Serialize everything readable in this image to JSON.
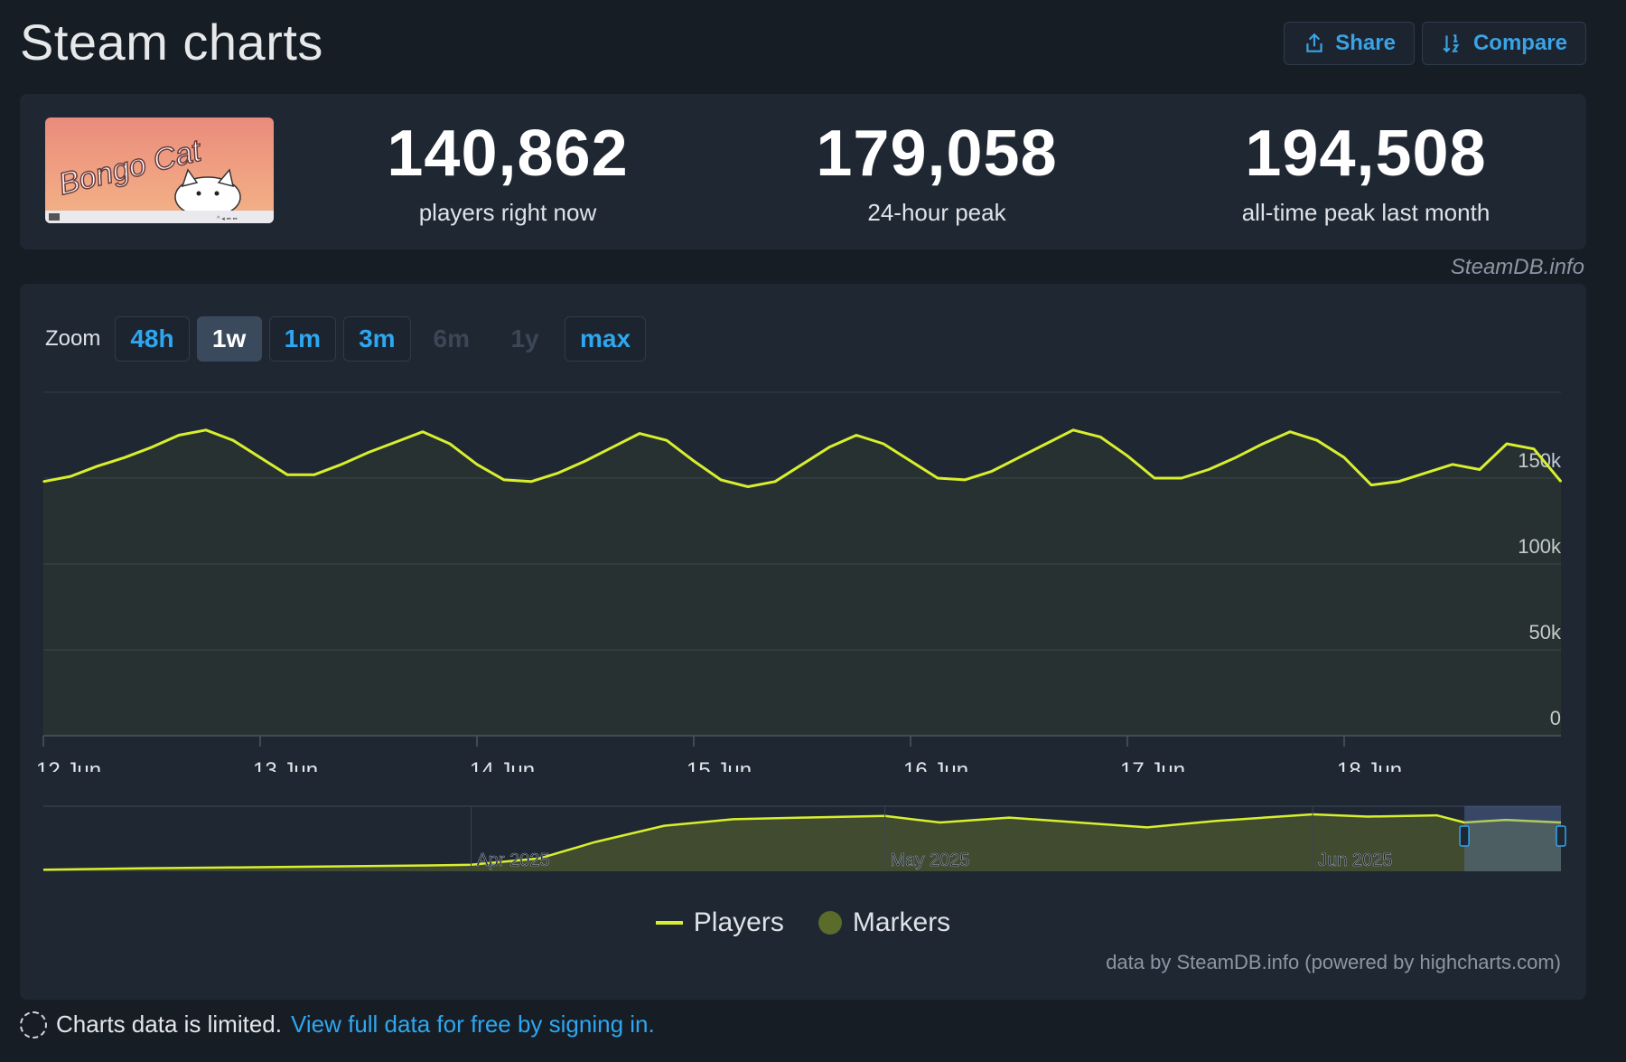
{
  "header": {
    "title": "Steam charts",
    "share_label": "Share",
    "compare_label": "Compare"
  },
  "game": {
    "thumbnail_icon": "bongo-cat-thumbnail",
    "thumbnail_text": "Bongo Cat"
  },
  "stats": [
    {
      "value": "140,862",
      "label": "players right now"
    },
    {
      "value": "179,058",
      "label": "24-hour peak"
    },
    {
      "value": "194,508",
      "label": "all-time peak last month"
    }
  ],
  "watermark": "SteamDB.info",
  "zoom": {
    "label": "Zoom",
    "options": [
      {
        "label": "48h",
        "state": "enabled"
      },
      {
        "label": "1w",
        "state": "active"
      },
      {
        "label": "1m",
        "state": "enabled"
      },
      {
        "label": "3m",
        "state": "enabled"
      },
      {
        "label": "6m",
        "state": "disabled"
      },
      {
        "label": "1y",
        "state": "disabled"
      },
      {
        "label": "max",
        "state": "enabled"
      }
    ]
  },
  "legend": {
    "players": "Players",
    "markers": "Markers"
  },
  "credits": "data by SteamDB.info (powered by highcharts.com)",
  "notice": {
    "text": "Charts data is limited.",
    "link": "View full data for free by signing in."
  },
  "colors": {
    "line": "#d8ef2e",
    "accent": "#2ea7f0",
    "background": "#171d25",
    "panel": "#1f2733"
  },
  "chart_data": [
    {
      "type": "area",
      "series": [
        {
          "name": "Players",
          "x": [
            "2025-06-12T00:00",
            "2025-06-12T03:00",
            "2025-06-12T06:00",
            "2025-06-12T09:00",
            "2025-06-12T12:00",
            "2025-06-12T15:00",
            "2025-06-12T18:00",
            "2025-06-12T21:00",
            "2025-06-13T00:00",
            "2025-06-13T03:00",
            "2025-06-13T06:00",
            "2025-06-13T09:00",
            "2025-06-13T12:00",
            "2025-06-13T15:00",
            "2025-06-13T18:00",
            "2025-06-13T21:00",
            "2025-06-14T00:00",
            "2025-06-14T03:00",
            "2025-06-14T06:00",
            "2025-06-14T09:00",
            "2025-06-14T12:00",
            "2025-06-14T15:00",
            "2025-06-14T18:00",
            "2025-06-14T21:00",
            "2025-06-15T00:00",
            "2025-06-15T03:00",
            "2025-06-15T06:00",
            "2025-06-15T09:00",
            "2025-06-15T12:00",
            "2025-06-15T15:00",
            "2025-06-15T18:00",
            "2025-06-15T21:00",
            "2025-06-16T00:00",
            "2025-06-16T03:00",
            "2025-06-16T06:00",
            "2025-06-16T09:00",
            "2025-06-16T12:00",
            "2025-06-16T15:00",
            "2025-06-16T18:00",
            "2025-06-16T21:00",
            "2025-06-17T00:00",
            "2025-06-17T03:00",
            "2025-06-17T06:00",
            "2025-06-17T09:00",
            "2025-06-17T12:00",
            "2025-06-17T15:00",
            "2025-06-17T18:00",
            "2025-06-17T21:00",
            "2025-06-18T00:00",
            "2025-06-18T03:00",
            "2025-06-18T06:00",
            "2025-06-18T09:00",
            "2025-06-18T12:00",
            "2025-06-18T15:00",
            "2025-06-18T18:00",
            "2025-06-18T21:00",
            "2025-06-19T00:00"
          ],
          "values": [
            148000,
            151000,
            157000,
            162000,
            168000,
            175000,
            178000,
            172000,
            162000,
            152000,
            152000,
            158000,
            165000,
            171000,
            177000,
            170000,
            158000,
            149000,
            148000,
            153000,
            160000,
            168000,
            176000,
            172000,
            160000,
            149000,
            145000,
            148000,
            158000,
            168000,
            175000,
            170000,
            160000,
            150000,
            149000,
            154000,
            162000,
            170000,
            178000,
            174000,
            163000,
            150000,
            150000,
            155000,
            162000,
            170000,
            177000,
            172000,
            162000,
            146000,
            148000,
            153000,
            158000,
            155000,
            170000,
            167000,
            148000
          ]
        }
      ],
      "xlim": [
        "2025-06-12T00:00",
        "2025-06-19T00:00"
      ],
      "xticks": [
        {
          "at": "2025-06-12T00:00",
          "label": "12 Jun"
        },
        {
          "at": "2025-06-13T00:00",
          "label": "13 Jun"
        },
        {
          "at": "2025-06-14T00:00",
          "label": "14 Jun"
        },
        {
          "at": "2025-06-15T00:00",
          "label": "15 Jun"
        },
        {
          "at": "2025-06-16T00:00",
          "label": "16 Jun"
        },
        {
          "at": "2025-06-17T00:00",
          "label": "17 Jun"
        },
        {
          "at": "2025-06-18T00:00",
          "label": "18 Jun"
        }
      ],
      "yticks": [
        {
          "value": 0,
          "label": "0"
        },
        {
          "value": 50000,
          "label": "50k"
        },
        {
          "value": 100000,
          "label": "100k"
        },
        {
          "value": 150000,
          "label": "150k"
        }
      ],
      "ylim": [
        0,
        200000
      ],
      "grid": true,
      "legend": "bottom-center"
    },
    {
      "type": "area",
      "role": "navigator",
      "series": [
        {
          "name": "Players",
          "x": [
            "2025-03-01",
            "2025-03-08",
            "2025-03-15",
            "2025-03-22",
            "2025-03-29",
            "2025-04-01",
            "2025-04-06",
            "2025-04-10",
            "2025-04-15",
            "2025-04-20",
            "2025-04-25",
            "2025-05-01",
            "2025-05-05",
            "2025-05-10",
            "2025-05-15",
            "2025-05-20",
            "2025-05-25",
            "2025-06-01",
            "2025-06-05",
            "2025-06-10",
            "2025-06-12",
            "2025-06-15",
            "2025-06-19"
          ],
          "values": [
            5000,
            9000,
            12000,
            15000,
            18000,
            20000,
            40000,
            90000,
            140000,
            160000,
            165000,
            170000,
            150000,
            165000,
            150000,
            135000,
            155000,
            175000,
            168000,
            172000,
            150000,
            158000,
            150000
          ]
        }
      ],
      "xticks": [
        {
          "at": "2025-04-01",
          "label": "Apr 2025"
        },
        {
          "at": "2025-05-01",
          "label": "May 2025"
        },
        {
          "at": "2025-06-01",
          "label": "Jun 2025"
        }
      ],
      "xlim": [
        "2025-03-01",
        "2025-06-19"
      ],
      "ylim": [
        0,
        200000
      ],
      "selected_range": [
        "2025-06-12",
        "2025-06-19"
      ]
    }
  ]
}
